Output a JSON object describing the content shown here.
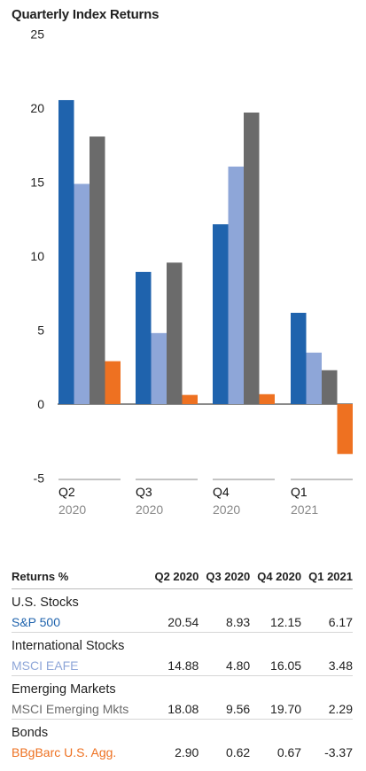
{
  "chart_data": {
    "type": "bar",
    "title": "Quarterly Index Returns",
    "categories": [
      {
        "quarter": "Q2",
        "year": "2020"
      },
      {
        "quarter": "Q3",
        "year": "2020"
      },
      {
        "quarter": "Q4",
        "year": "2020"
      },
      {
        "quarter": "Q1",
        "year": "2021"
      }
    ],
    "yticks": [
      "25",
      "20",
      "15",
      "10",
      "5",
      "0",
      "-5"
    ],
    "ylim": [
      -5,
      25
    ],
    "grid": false,
    "series": [
      {
        "name": "S&P 500",
        "color": "#1f63ad",
        "values": [
          20.54,
          8.93,
          12.15,
          6.17
        ]
      },
      {
        "name": "MSCI EAFE",
        "color": "#8ea6d8",
        "values": [
          14.88,
          4.8,
          16.05,
          3.48
        ]
      },
      {
        "name": "MSCI Emerging Mkts",
        "color": "#6b6b6b",
        "values": [
          18.08,
          9.56,
          19.7,
          2.29
        ]
      },
      {
        "name": "BBgBarc U.S. Agg.",
        "color": "#ee7121",
        "values": [
          2.9,
          0.62,
          0.67,
          -3.37
        ]
      }
    ]
  },
  "table": {
    "header": [
      "Returns %",
      "Q2 2020",
      "Q3 2020",
      "Q4 2020",
      "Q1 2021"
    ],
    "groups": [
      {
        "category": "U.S. Stocks",
        "index": "S&P 500",
        "color": "#1f63ad",
        "values": [
          "20.54",
          "8.93",
          "12.15",
          "6.17"
        ]
      },
      {
        "category": "International Stocks",
        "index": "MSCI EAFE",
        "color": "#8ea6d8",
        "values": [
          "14.88",
          "4.80",
          "16.05",
          "3.48"
        ]
      },
      {
        "category": "Emerging Markets",
        "index": "MSCI Emerging Mkts",
        "color": "#6b6b6b",
        "values": [
          "18.08",
          "9.56",
          "19.70",
          "2.29"
        ]
      },
      {
        "category": "Bonds",
        "index": "BBgBarc U.S. Agg.",
        "color": "#ee7121",
        "values": [
          "2.90",
          "0.62",
          "0.67",
          "-3.37"
        ]
      }
    ]
  }
}
